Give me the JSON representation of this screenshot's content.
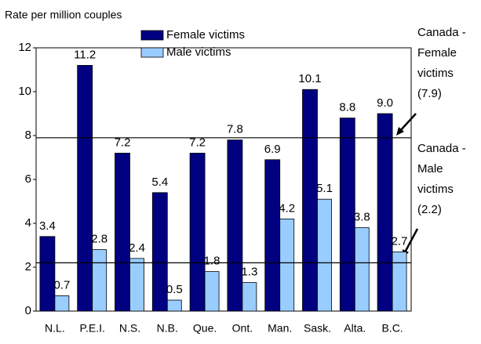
{
  "chart_data": {
    "type": "bar",
    "y_axis_label": "Rate per million couples",
    "categories": [
      "N.L.",
      "P.E.I.",
      "N.S.",
      "N.B.",
      "Que.",
      "Ont.",
      "Man.",
      "Sask.",
      "Alta.",
      "B.C."
    ],
    "series": [
      {
        "name": "Female victims",
        "color": "#000080",
        "values": [
          3.4,
          11.2,
          7.2,
          5.4,
          7.2,
          7.8,
          6.9,
          10.1,
          8.8,
          9.0
        ],
        "value_labels": [
          "3.4",
          "11.2",
          "7.2",
          "5.4",
          "7.2",
          "7.8",
          "6.9",
          "10.1",
          "8.8",
          "9.0"
        ]
      },
      {
        "name": "Male victims",
        "color": "#99ccff",
        "values": [
          0.7,
          2.8,
          2.4,
          0.5,
          1.8,
          1.3,
          4.2,
          5.1,
          3.8,
          2.7
        ]
      }
    ],
    "reference_lines": [
      {
        "value": 7.9,
        "label": "(7.9)",
        "text": [
          "Canada -",
          "Female",
          "victims"
        ]
      },
      {
        "value": 2.2,
        "label": "(2.2)",
        "text": [
          "Canada -",
          "Male",
          "victims"
        ]
      }
    ],
    "ylim": [
      0,
      12
    ],
    "yticks": [
      0,
      2,
      4,
      6,
      8,
      10,
      12
    ]
  }
}
